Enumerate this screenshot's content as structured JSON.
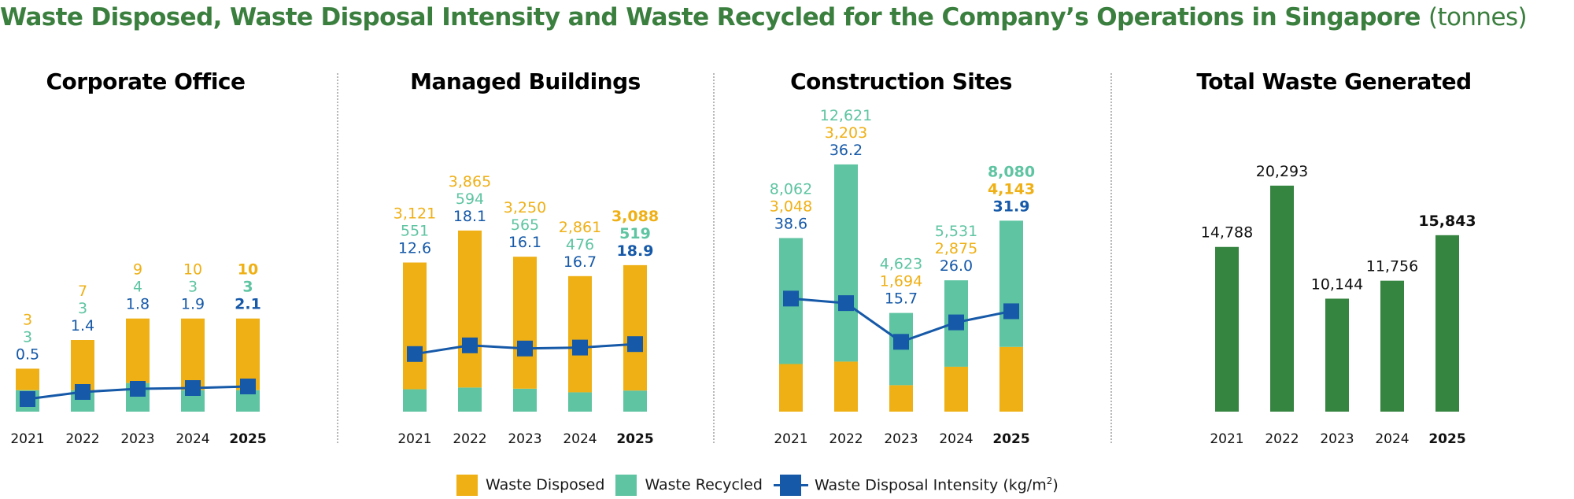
{
  "title": {
    "main": "Waste Disposed, Waste Disposal Intensity and Waste Recycled for the Company’s Operations in Singapore",
    "unit": "(tonnes)"
  },
  "colors": {
    "title": "#3b7f3f",
    "disposed": "#efb016",
    "recycled": "#5ec4a2",
    "intensity": "#1659a8",
    "total": "#358440",
    "axis_text": "#111111"
  },
  "legend": {
    "disposed": "Waste Disposed",
    "recycled": "Waste Recycled",
    "intensity": "Waste Disposal Intensity (kg/m",
    "intensity_sup": "2",
    "intensity_close": ")"
  },
  "chart_data": [
    {
      "type": "bar",
      "title": "Corporate Office",
      "stacked": true,
      "categories": [
        "2021",
        "2022",
        "2023",
        "2024",
        "2025"
      ],
      "highlight_category": "2025",
      "stack_order": [
        "recycled",
        "disposed"
      ],
      "label_order": [
        "disposed",
        "recycled",
        "intensity"
      ],
      "series": [
        {
          "key": "disposed",
          "name": "Waste Disposed",
          "values": [
            3,
            7,
            9,
            10,
            10
          ]
        },
        {
          "key": "recycled",
          "name": "Waste Recycled",
          "values": [
            3,
            3,
            4,
            3,
            3
          ]
        },
        {
          "key": "intensity",
          "name": "Waste Disposal Intensity (kg/m2)",
          "type": "line",
          "values": [
            0.5,
            1.4,
            1.8,
            1.9,
            2.1
          ]
        }
      ],
      "labels": {
        "disposed": [
          "3",
          "7",
          "9",
          "10",
          "10"
        ],
        "recycled": [
          "3",
          "3",
          "4",
          "3",
          "3"
        ],
        "intensity": [
          "0.5",
          "1.4",
          "1.8",
          "1.9",
          "2.1"
        ]
      }
    },
    {
      "type": "bar",
      "title": "Managed Buildings",
      "stacked": true,
      "categories": [
        "2021",
        "2022",
        "2023",
        "2024",
        "2025"
      ],
      "highlight_category": "2025",
      "stack_order": [
        "recycled",
        "disposed"
      ],
      "label_order": [
        "disposed",
        "recycled",
        "intensity"
      ],
      "series": [
        {
          "key": "disposed",
          "name": "Waste Disposed",
          "values": [
            3121,
            3865,
            3250,
            2861,
            3088
          ]
        },
        {
          "key": "recycled",
          "name": "Waste Recycled",
          "values": [
            551,
            594,
            565,
            476,
            519
          ]
        },
        {
          "key": "intensity",
          "name": "Waste Disposal Intensity (kg/m2)",
          "type": "line",
          "values": [
            12.6,
            18.1,
            16.1,
            16.7,
            18.9
          ]
        }
      ],
      "labels": {
        "disposed": [
          "3,121",
          "3,865",
          "3,250",
          "2,861",
          "3,088"
        ],
        "recycled": [
          "551",
          "594",
          "565",
          "476",
          "519"
        ],
        "intensity": [
          "12.6",
          "18.1",
          "16.1",
          "16.7",
          "18.9"
        ]
      }
    },
    {
      "type": "bar",
      "title": "Construction Sites",
      "stacked": true,
      "categories": [
        "2021",
        "2022",
        "2023",
        "2024",
        "2025"
      ],
      "highlight_category": "2025",
      "stack_order": [
        "disposed",
        "recycled"
      ],
      "label_order": [
        "recycled",
        "disposed",
        "intensity"
      ],
      "series": [
        {
          "key": "disposed",
          "name": "Waste Disposed",
          "values": [
            3048,
            3203,
            1694,
            2875,
            4143
          ]
        },
        {
          "key": "recycled",
          "name": "Waste Recycled",
          "values": [
            8062,
            12621,
            4623,
            5531,
            8080
          ]
        },
        {
          "key": "intensity",
          "name": "Waste Disposal Intensity (kg/m2)",
          "type": "line",
          "values": [
            38.6,
            36.2,
            15.7,
            26.0,
            31.9
          ]
        }
      ],
      "labels": {
        "recycled": [
          "8,062",
          "12,621",
          "4,623",
          "5,531",
          "8,080"
        ],
        "disposed": [
          "3,048",
          "3,203",
          "1,694",
          "2,875",
          "4,143"
        ],
        "intensity": [
          "38.6",
          "36.2",
          "15.7",
          "26.0",
          "31.9"
        ]
      }
    },
    {
      "type": "bar",
      "title": "Total Waste Generated",
      "stacked": false,
      "categories": [
        "2021",
        "2022",
        "2023",
        "2024",
        "2025"
      ],
      "highlight_category": "2025",
      "series": [
        {
          "key": "total",
          "name": "Total Waste Generated",
          "values": [
            14788,
            20293,
            10144,
            11756,
            15843
          ]
        }
      ],
      "labels": {
        "total": [
          "14,788",
          "20,293",
          "10,144",
          "11,756",
          "15,843"
        ]
      }
    }
  ]
}
